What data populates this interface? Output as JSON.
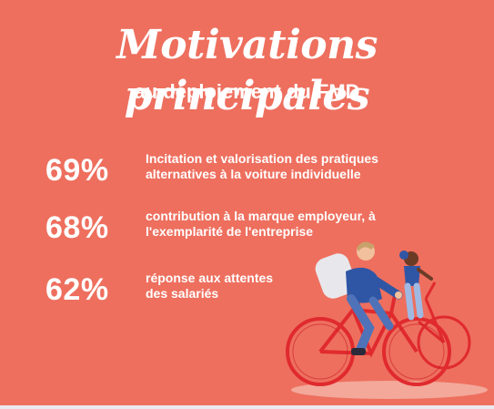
{
  "header": {
    "title": "Motivations principales",
    "subtitle": "au déploiement du FMD"
  },
  "stats": [
    {
      "percent": "69%",
      "line1": "Incitation et valorisation des pratiques",
      "line2": "alternatives à la voiture individuelle"
    },
    {
      "percent": "68%",
      "line1": "contribution à la marque employeur, à",
      "line2": "l'exemplarité de l'entreprise"
    },
    {
      "percent": "62%",
      "line1": "réponse aux attentes",
      "line2": "des salariés"
    }
  ],
  "colors": {
    "background": "#ee6f5e",
    "text": "#ffffff",
    "bike": "#e02a2e",
    "shirt": "#2f56a5",
    "backpack": "#e8e8ec"
  },
  "illustration": {
    "icon": "cyclist-with-child-on-bike-icon"
  }
}
